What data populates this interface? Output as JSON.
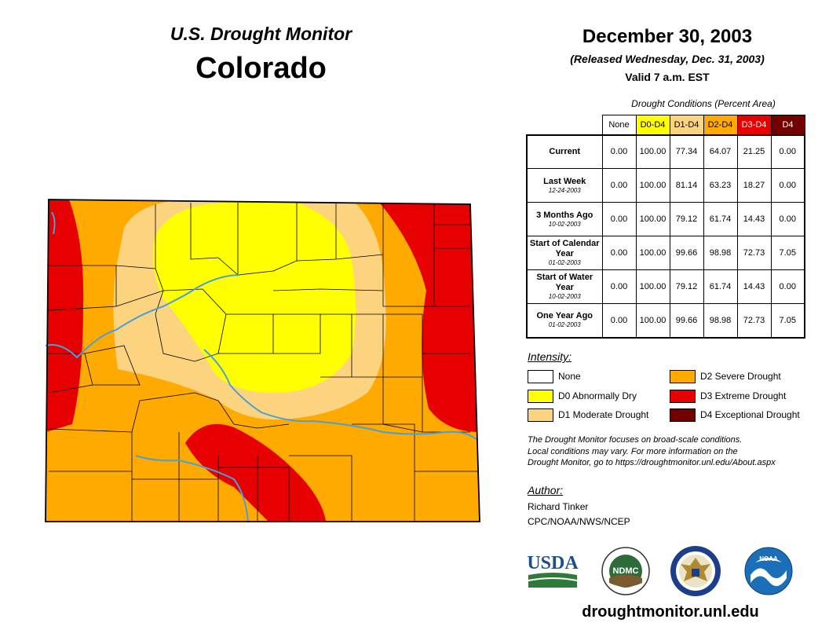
{
  "header": {
    "title": "U.S. Drought Monitor",
    "state": "Colorado",
    "date": "December 30, 2003",
    "released": "(Released Wednesday, Dec. 31, 2003)",
    "valid": "Valid 7 a.m. EST"
  },
  "table": {
    "caption": "Drought Conditions (Percent Area)",
    "columns": [
      {
        "label": "None",
        "color": "#ffffff",
        "text_color": "#000000"
      },
      {
        "label": "D0-D4",
        "color": "#ffff00",
        "text_color": "#000000"
      },
      {
        "label": "D1-D4",
        "color": "#fcd37f",
        "text_color": "#000000"
      },
      {
        "label": "D2-D4",
        "color": "#ffaa00",
        "text_color": "#000000"
      },
      {
        "label": "D3-D4",
        "color": "#e60000",
        "text_color": "#ffffff"
      },
      {
        "label": "D4",
        "color": "#730000",
        "text_color": "#ffffff"
      }
    ],
    "rows": [
      {
        "label": "Current",
        "sub": "",
        "values": [
          "0.00",
          "100.00",
          "77.34",
          "64.07",
          "21.25",
          "0.00"
        ]
      },
      {
        "label": "Last Week",
        "sub": "12-24-2003",
        "values": [
          "0.00",
          "100.00",
          "81.14",
          "63.23",
          "18.27",
          "0.00"
        ]
      },
      {
        "label": "3 Months Ago",
        "sub": "10-02-2003",
        "values": [
          "0.00",
          "100.00",
          "79.12",
          "61.74",
          "14.43",
          "0.00"
        ]
      },
      {
        "label": "Start of Calendar Year",
        "sub": "01-02-2003",
        "values": [
          "0.00",
          "100.00",
          "99.66",
          "98.98",
          "72.73",
          "7.05"
        ]
      },
      {
        "label": "Start of Water Year",
        "sub": "10-02-2003",
        "values": [
          "0.00",
          "100.00",
          "79.12",
          "61.74",
          "14.43",
          "0.00"
        ]
      },
      {
        "label": "One Year Ago",
        "sub": "01-02-2003",
        "values": [
          "0.00",
          "100.00",
          "99.66",
          "98.98",
          "72.73",
          "7.05"
        ]
      }
    ]
  },
  "legend": {
    "title": "Intensity:",
    "items": [
      {
        "label": "None",
        "color": "#ffffff"
      },
      {
        "label": "D0 Abnormally Dry",
        "color": "#ffff00"
      },
      {
        "label": "D1 Moderate Drought",
        "color": "#fcd37f"
      },
      {
        "label": "D2 Severe Drought",
        "color": "#ffaa00"
      },
      {
        "label": "D3 Extreme Drought",
        "color": "#e60000"
      },
      {
        "label": "D4 Exceptional Drought",
        "color": "#730000"
      }
    ]
  },
  "note": {
    "line1": "The Drought Monitor focuses on broad-scale conditions.",
    "line2": "Local conditions may vary. For more information on the",
    "line3": "Drought Monitor, go to https://droughtmonitor.unl.edu/About.aspx"
  },
  "author": {
    "heading": "Author:",
    "name": "Richard Tinker",
    "org": "CPC/NOAA/NWS/NCEP"
  },
  "logos": {
    "usda": "USDA",
    "ndmc": "NDMC",
    "noaa": "NOAA"
  },
  "footer": {
    "website": "droughtmonitor.unl.edu"
  },
  "map_colors": {
    "d0": "#ffff00",
    "d1": "#fcd37f",
    "d2": "#ffaa00",
    "d3": "#e60000",
    "river": "#4a9fd8",
    "county_line": "#000000"
  }
}
